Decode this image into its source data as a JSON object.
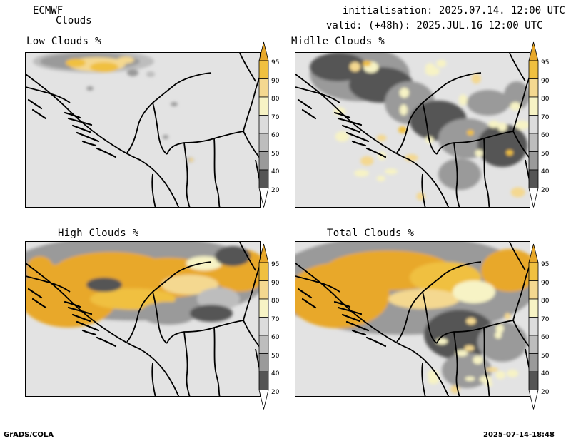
{
  "header": {
    "model": "ECMWF",
    "parameter": "Clouds",
    "init_text": "initialisation: 2025.07.14. 12:00 UTC",
    "valid_text": "valid: (+48h): 2025.JUL.16 12:00 UTC"
  },
  "panels": [
    {
      "id": "low",
      "title": "Low Clouds %"
    },
    {
      "id": "middle",
      "title": "Midlle Clouds %"
    },
    {
      "id": "high",
      "title": "High Clouds %"
    },
    {
      "id": "total",
      "title": "Total Clouds %"
    }
  ],
  "colorbar": {
    "levels": [
      "95",
      "90",
      "80",
      "70",
      "60",
      "50",
      "40",
      "20"
    ],
    "colors": {
      "c95": "#e8a82a",
      "c90": "#f0c040",
      "c80": "#f4d890",
      "c70": "#f7f3c5",
      "c60": "#dcdcdc",
      "c50": "#bdbdbd",
      "c40": "#9a9a9a",
      "c20": "#555555",
      "cbg": "#e3e3e3"
    }
  },
  "footer": {
    "left": "GrADS/COLA",
    "right": "2025-07-14-18:48"
  }
}
